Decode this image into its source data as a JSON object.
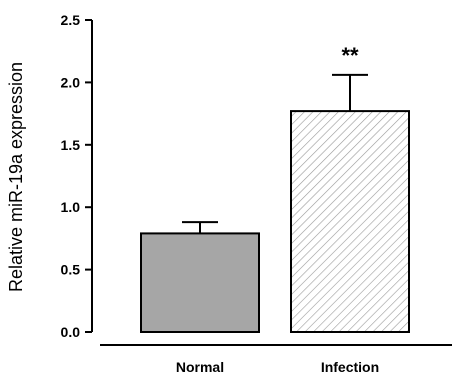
{
  "chart_data": {
    "type": "bar",
    "categories": [
      "Normal",
      "Infection"
    ],
    "values": [
      0.79,
      1.77
    ],
    "errors": [
      0.09,
      0.29
    ],
    "annotations": [
      "",
      "**"
    ],
    "ylabel": "Relative miR-19a expression",
    "xlabel": "",
    "ylim": [
      0,
      2.5
    ],
    "yticks": [
      "0.0",
      "0.5",
      "1.0",
      "1.5",
      "2.0",
      "2.5"
    ],
    "bar_styles": [
      {
        "fill": "#a6a6a6",
        "pattern": "solid"
      },
      {
        "fill": "#ffffff",
        "pattern": "diagonal-hatch"
      }
    ],
    "grid": false
  }
}
